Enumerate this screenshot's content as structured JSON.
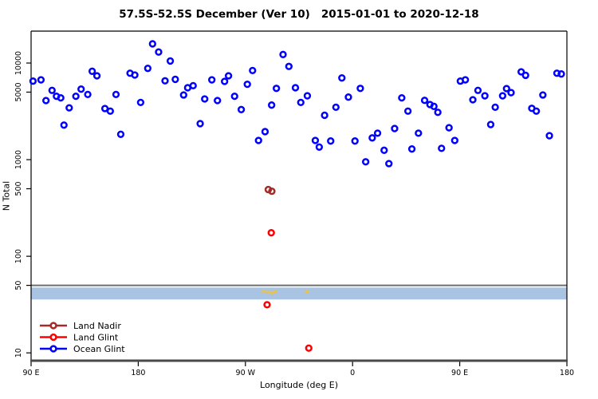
{
  "title": "57.5S-52.5S December (Ver 10)   2015-01-01 to 2020-12-18",
  "axes": {
    "x_label": "Longitude (deg E)",
    "y_label": "N Total"
  },
  "colors": {
    "ocean_glint": "#0000ff",
    "land_glint": "#ff0000",
    "land_nadir": "#a52a2a",
    "band": "#a9c3e2",
    "hline": "#6e6e6e",
    "axis_bottom": "#4a4a4a",
    "yellow_mark": "#e8c252"
  },
  "legend": {
    "items": [
      {
        "label": "Land Nadir",
        "color": "#a52a2a"
      },
      {
        "label": "Land Glint",
        "color": "#ff0000"
      },
      {
        "label": "Ocean Glint",
        "color": "#0000ff"
      }
    ]
  },
  "chart_data": {
    "type": "scatter",
    "title": "57.5S-52.5S December (Ver 10)   2015-01-01 to 2020-12-18",
    "xlabel": "Longitude (deg E)",
    "ylabel": "N Total",
    "x_axis": {
      "scale": "linear",
      "range": [
        90,
        540
      ],
      "note": "continuous eastward longitude: 270=90W, 360=0, 450=90E, 540=180",
      "tick_values": [
        90,
        180,
        270,
        360,
        450,
        540
      ],
      "tick_labels": [
        "90 E",
        "180",
        "90 W",
        "0",
        "90 E",
        "180"
      ]
    },
    "y_axis": {
      "scale": "log10",
      "range": [
        8.3,
        21400
      ],
      "tick_values": [
        10000,
        5000,
        1000,
        500,
        100,
        50,
        10
      ],
      "tick_labels": [
        "10000",
        "5000",
        "1000",
        "500",
        "100",
        "50",
        "10"
      ]
    },
    "grid": false,
    "legend_position": "bottom-left",
    "marker": "open-circle",
    "series": [
      {
        "name": "Ocean Glint",
        "color": "#0000ff",
        "points": [
          [
            91.6,
            6500
          ],
          [
            98.3,
            6700
          ],
          [
            107.6,
            5210
          ],
          [
            102.5,
            4090
          ],
          [
            111.3,
            4530
          ],
          [
            114.9,
            4360
          ],
          [
            122,
            3440
          ],
          [
            117.6,
            2280
          ],
          [
            127.6,
            4530
          ],
          [
            132,
            5370
          ],
          [
            137.6,
            4730
          ],
          [
            141.3,
            8220
          ],
          [
            145.3,
            7380
          ],
          [
            152,
            3380
          ],
          [
            156.5,
            3180
          ],
          [
            161.3,
            4730
          ],
          [
            165.3,
            1830
          ],
          [
            192,
            15800
          ],
          [
            197.1,
            13000
          ],
          [
            206.9,
            10500
          ],
          [
            173.1,
            7850
          ],
          [
            177.1,
            7520
          ],
          [
            188,
            8810
          ],
          [
            202.5,
            6550
          ],
          [
            211.1,
            6780
          ],
          [
            221.5,
            5550
          ],
          [
            226.1,
            5830
          ],
          [
            218.1,
            4670
          ],
          [
            235.8,
            4250
          ],
          [
            182,
            3910
          ],
          [
            232,
            2360
          ],
          [
            301.6,
            12250
          ],
          [
            306.5,
            9230
          ],
          [
            276,
            8370
          ],
          [
            255.8,
            7380
          ],
          [
            252.5,
            6460
          ],
          [
            241.8,
            6700
          ],
          [
            271.6,
            6030
          ],
          [
            296,
            5470
          ],
          [
            312,
            5550
          ],
          [
            260.9,
            4530
          ],
          [
            246.5,
            4090
          ],
          [
            266.5,
            3300
          ],
          [
            292,
            3670
          ],
          [
            316.5,
            3910
          ],
          [
            286.5,
            1950
          ],
          [
            281,
            1580
          ],
          [
            351,
            7010
          ],
          [
            366.5,
            5470
          ],
          [
            322,
            4580
          ],
          [
            356.5,
            4440
          ],
          [
            346,
            3490
          ],
          [
            336.5,
            2880
          ],
          [
            328.7,
            1580
          ],
          [
            332,
            1350
          ],
          [
            341.6,
            1560
          ],
          [
            362,
            1560
          ],
          [
            376.5,
            1680
          ],
          [
            381,
            1880
          ],
          [
            395.3,
            2100
          ],
          [
            386.5,
            1250
          ],
          [
            371,
            950
          ],
          [
            390.5,
            910
          ],
          [
            450.5,
            6500
          ],
          [
            454.7,
            6700
          ],
          [
            465.3,
            5210
          ],
          [
            461,
            4170
          ],
          [
            471.1,
            4580
          ],
          [
            401.3,
            4360
          ],
          [
            420.5,
            4110
          ],
          [
            425,
            3720
          ],
          [
            428.3,
            3560
          ],
          [
            406.5,
            3180
          ],
          [
            431.6,
            3090
          ],
          [
            415.3,
            1880
          ],
          [
            441,
            2140
          ],
          [
            445.8,
            1580
          ],
          [
            409.8,
            1290
          ],
          [
            434.7,
            1310
          ],
          [
            501.6,
            8110
          ],
          [
            505.3,
            7460
          ],
          [
            531.6,
            7850
          ],
          [
            535.3,
            7710
          ],
          [
            489.3,
            5440
          ],
          [
            493.1,
            4940
          ],
          [
            486,
            4580
          ],
          [
            479.8,
            3490
          ],
          [
            519.8,
            4670
          ],
          [
            510.5,
            3400
          ],
          [
            514.3,
            3180
          ],
          [
            476,
            2310
          ],
          [
            525.3,
            1770
          ]
        ]
      },
      {
        "name": "Land Glint",
        "color": "#ff0000",
        "points": [
          [
            291.7,
            175
          ],
          [
            288.2,
            31.5
          ],
          [
            323.2,
            11.2
          ]
        ]
      },
      {
        "name": "Land Nadir",
        "color": "#a52a2a",
        "points": [
          [
            289.2,
            490
          ],
          [
            292.2,
            471
          ]
        ]
      }
    ],
    "annotations": {
      "hline": {
        "n": 50,
        "color": "#6e6e6e"
      },
      "band": {
        "n_from": 35.7,
        "n_to": 47.5,
        "color": "#a9c3e2"
      },
      "yellow_marks": [
        [
          285.5,
          43.3
        ],
        [
          288.9,
          42.5
        ],
        [
          292.2,
          41.7
        ],
        [
          294.9,
          42.9
        ],
        [
          321.7,
          42.9
        ]
      ]
    }
  }
}
